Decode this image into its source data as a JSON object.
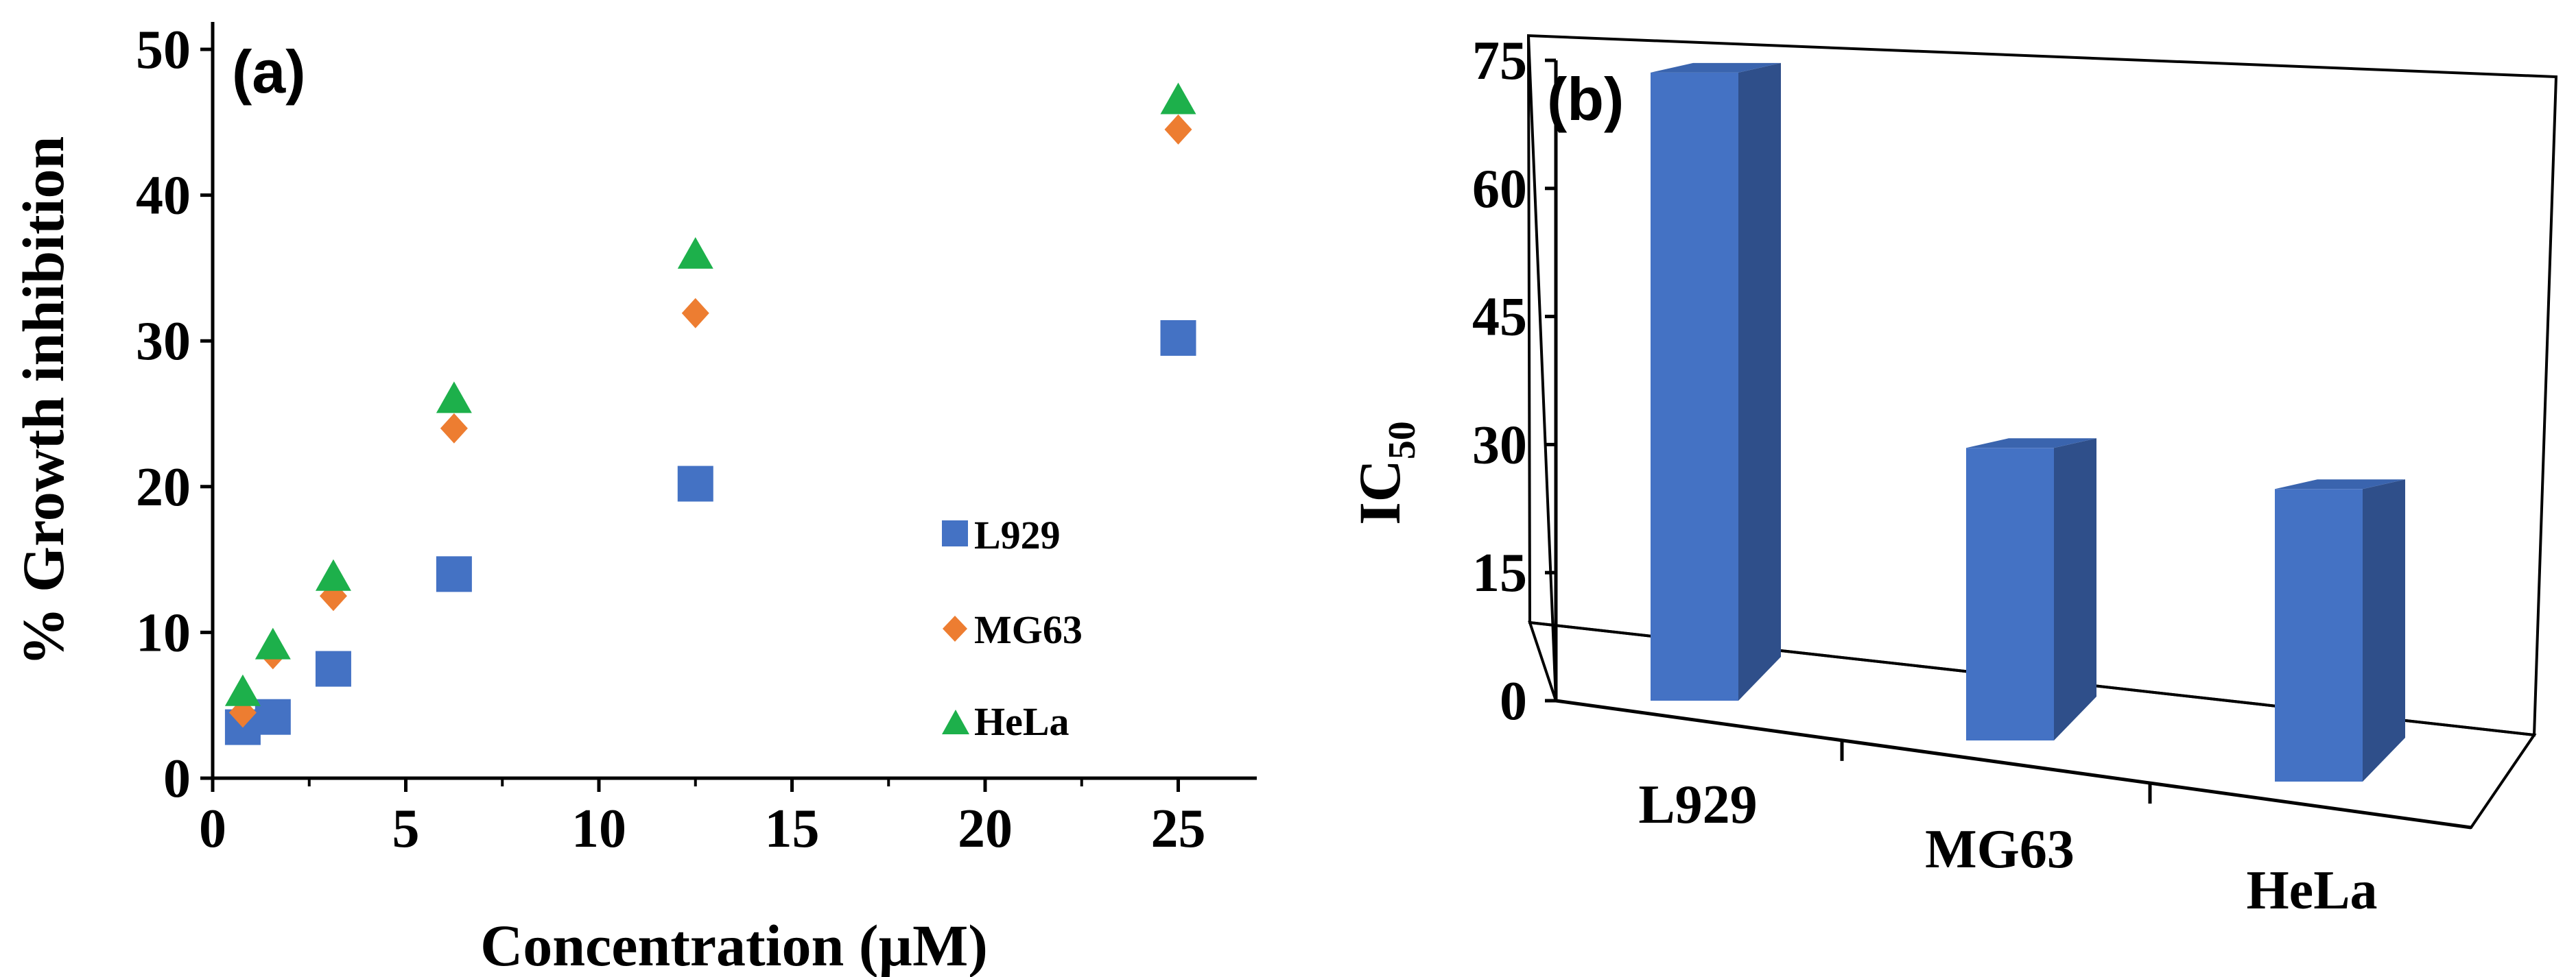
{
  "chart_data": [
    {
      "type": "scatter",
      "panel_label": "(a)",
      "xlabel": "Concentration (µM)",
      "ylabel": "% Growth inhibition",
      "xlim": [
        0,
        27
      ],
      "ylim": [
        0,
        50
      ],
      "xticks": [
        "0",
        "5",
        "10",
        "15",
        "20",
        "25"
      ],
      "yticks": [
        "0",
        "10",
        "20",
        "30",
        "40",
        "50"
      ],
      "legend_position": "right",
      "series": [
        {
          "name": "L929",
          "marker": "square",
          "color": "#4472C4",
          "x": [
            0.78,
            1.56,
            3.125,
            6.25,
            12.5,
            25
          ],
          "y": [
            3.5,
            4.2,
            7.5,
            14,
            20.2,
            30.2
          ]
        },
        {
          "name": "MG63",
          "marker": "diamond",
          "color": "#ED7D31",
          "x": [
            0.78,
            1.56,
            3.125,
            6.25,
            12.5,
            25
          ],
          "y": [
            4.5,
            8.5,
            12.5,
            24,
            31.9,
            44.5
          ]
        },
        {
          "name": "HeLa",
          "marker": "triangle",
          "color": "#1DB04B",
          "x": [
            0.78,
            1.56,
            3.125,
            6.25,
            12.5,
            25
          ],
          "y": [
            5.8,
            9.0,
            13.7,
            25.9,
            35.8,
            46.4
          ]
        }
      ]
    },
    {
      "type": "bar",
      "style": "3d",
      "panel_label": "(b)",
      "ylabel": "IC",
      "ylabel_sub": "50",
      "ylim": [
        0,
        75
      ],
      "yticks": [
        "0",
        "15",
        "30",
        "45",
        "60",
        "75"
      ],
      "categories": [
        "L929",
        "MG63",
        "HeLa"
      ],
      "values": [
        73,
        34,
        34
      ],
      "color": "#4472C4"
    }
  ]
}
